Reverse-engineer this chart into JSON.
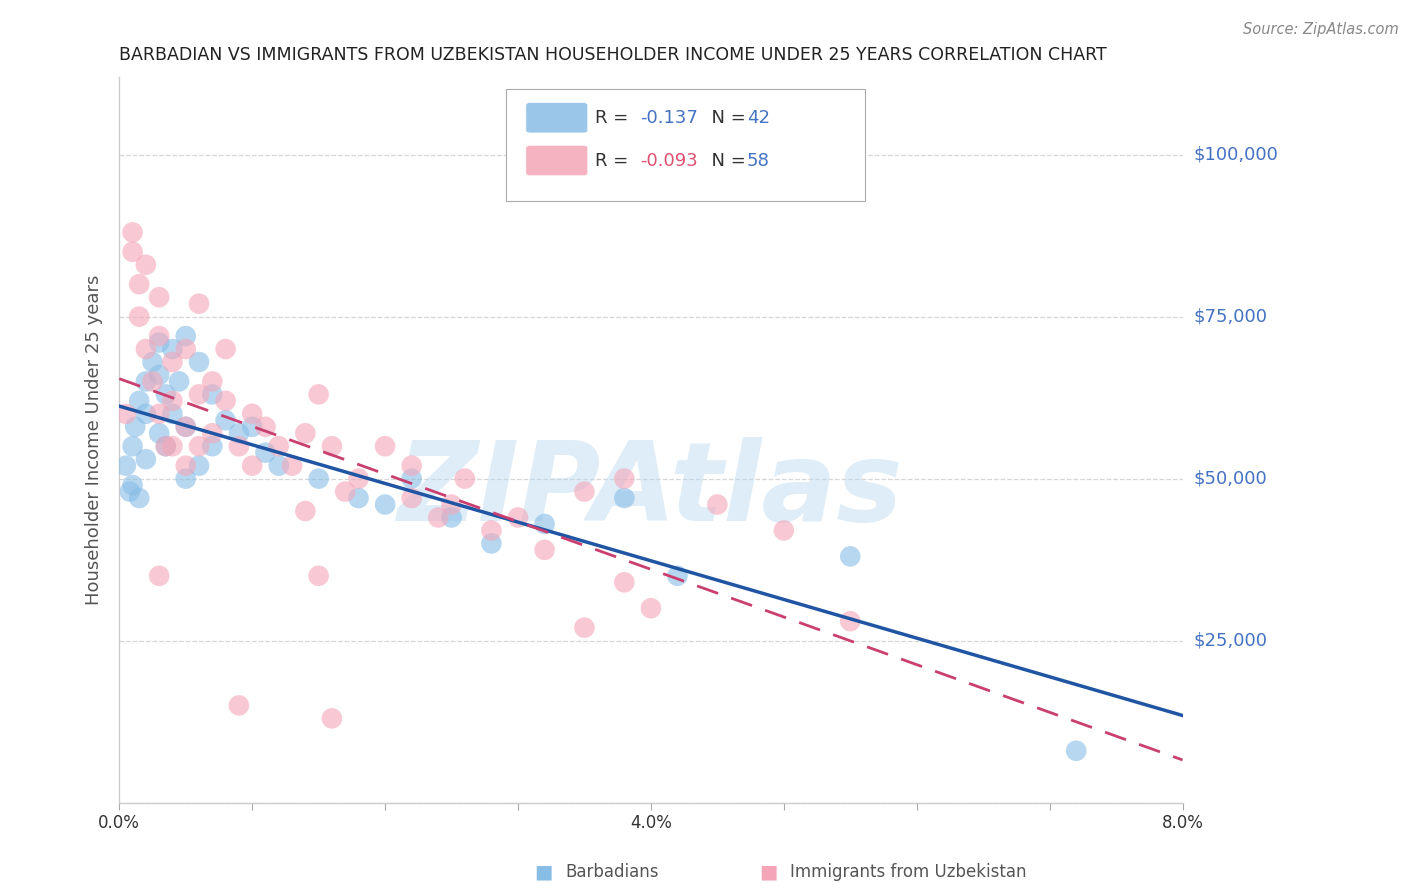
{
  "title": "BARBADIAN VS IMMIGRANTS FROM UZBEKISTAN HOUSEHOLDER INCOME UNDER 25 YEARS CORRELATION CHART",
  "source": "Source: ZipAtlas.com",
  "ylabel": "Householder Income Under 25 years",
  "watermark": "ZIPAtlas",
  "xmin": 0.0,
  "xmax": 0.08,
  "ymin": 0,
  "ymax": 112000,
  "barbadians_color": "#88bde6",
  "uzbekistan_color": "#f4a6b8",
  "barbadians_line_color": "#2055a4",
  "uzbekistan_line_color": "#c94070",
  "background_color": "#ffffff",
  "grid_color": "#cccccc",
  "title_fontsize": 12.5,
  "barbadians_x": [
    0.0005,
    0.0008,
    0.001,
    0.001,
    0.0012,
    0.0015,
    0.0015,
    0.002,
    0.002,
    0.002,
    0.0025,
    0.003,
    0.003,
    0.003,
    0.0035,
    0.0035,
    0.004,
    0.004,
    0.0045,
    0.005,
    0.005,
    0.005,
    0.006,
    0.006,
    0.007,
    0.007,
    0.008,
    0.009,
    0.01,
    0.011,
    0.012,
    0.015,
    0.018,
    0.02,
    0.022,
    0.025,
    0.028,
    0.032,
    0.038,
    0.042,
    0.055,
    0.072
  ],
  "barbadians_y": [
    52000,
    48000,
    55000,
    49000,
    58000,
    62000,
    47000,
    65000,
    60000,
    53000,
    68000,
    71000,
    66000,
    57000,
    63000,
    55000,
    70000,
    60000,
    65000,
    72000,
    58000,
    50000,
    68000,
    52000,
    63000,
    55000,
    59000,
    57000,
    58000,
    54000,
    52000,
    50000,
    47000,
    46000,
    50000,
    44000,
    40000,
    43000,
    47000,
    35000,
    38000,
    8000
  ],
  "uzbekistan_x": [
    0.0005,
    0.001,
    0.001,
    0.0015,
    0.0015,
    0.002,
    0.002,
    0.0025,
    0.003,
    0.003,
    0.003,
    0.0035,
    0.004,
    0.004,
    0.004,
    0.005,
    0.005,
    0.005,
    0.006,
    0.006,
    0.007,
    0.007,
    0.008,
    0.008,
    0.009,
    0.01,
    0.01,
    0.011,
    0.012,
    0.013,
    0.014,
    0.015,
    0.016,
    0.017,
    0.018,
    0.02,
    0.022,
    0.024,
    0.026,
    0.028,
    0.03,
    0.032,
    0.035,
    0.038,
    0.04,
    0.045,
    0.05,
    0.055,
    0.038,
    0.022,
    0.003,
    0.015,
    0.025,
    0.035,
    0.016,
    0.009,
    0.014,
    0.006
  ],
  "uzbekistan_y": [
    60000,
    88000,
    85000,
    80000,
    75000,
    83000,
    70000,
    65000,
    78000,
    72000,
    60000,
    55000,
    68000,
    62000,
    55000,
    70000,
    58000,
    52000,
    63000,
    55000,
    65000,
    57000,
    70000,
    62000,
    55000,
    60000,
    52000,
    58000,
    55000,
    52000,
    57000,
    63000,
    55000,
    48000,
    50000,
    55000,
    47000,
    44000,
    50000,
    42000,
    44000,
    39000,
    27000,
    34000,
    30000,
    46000,
    42000,
    28000,
    50000,
    52000,
    35000,
    35000,
    46000,
    48000,
    13000,
    15000,
    45000,
    77000
  ]
}
